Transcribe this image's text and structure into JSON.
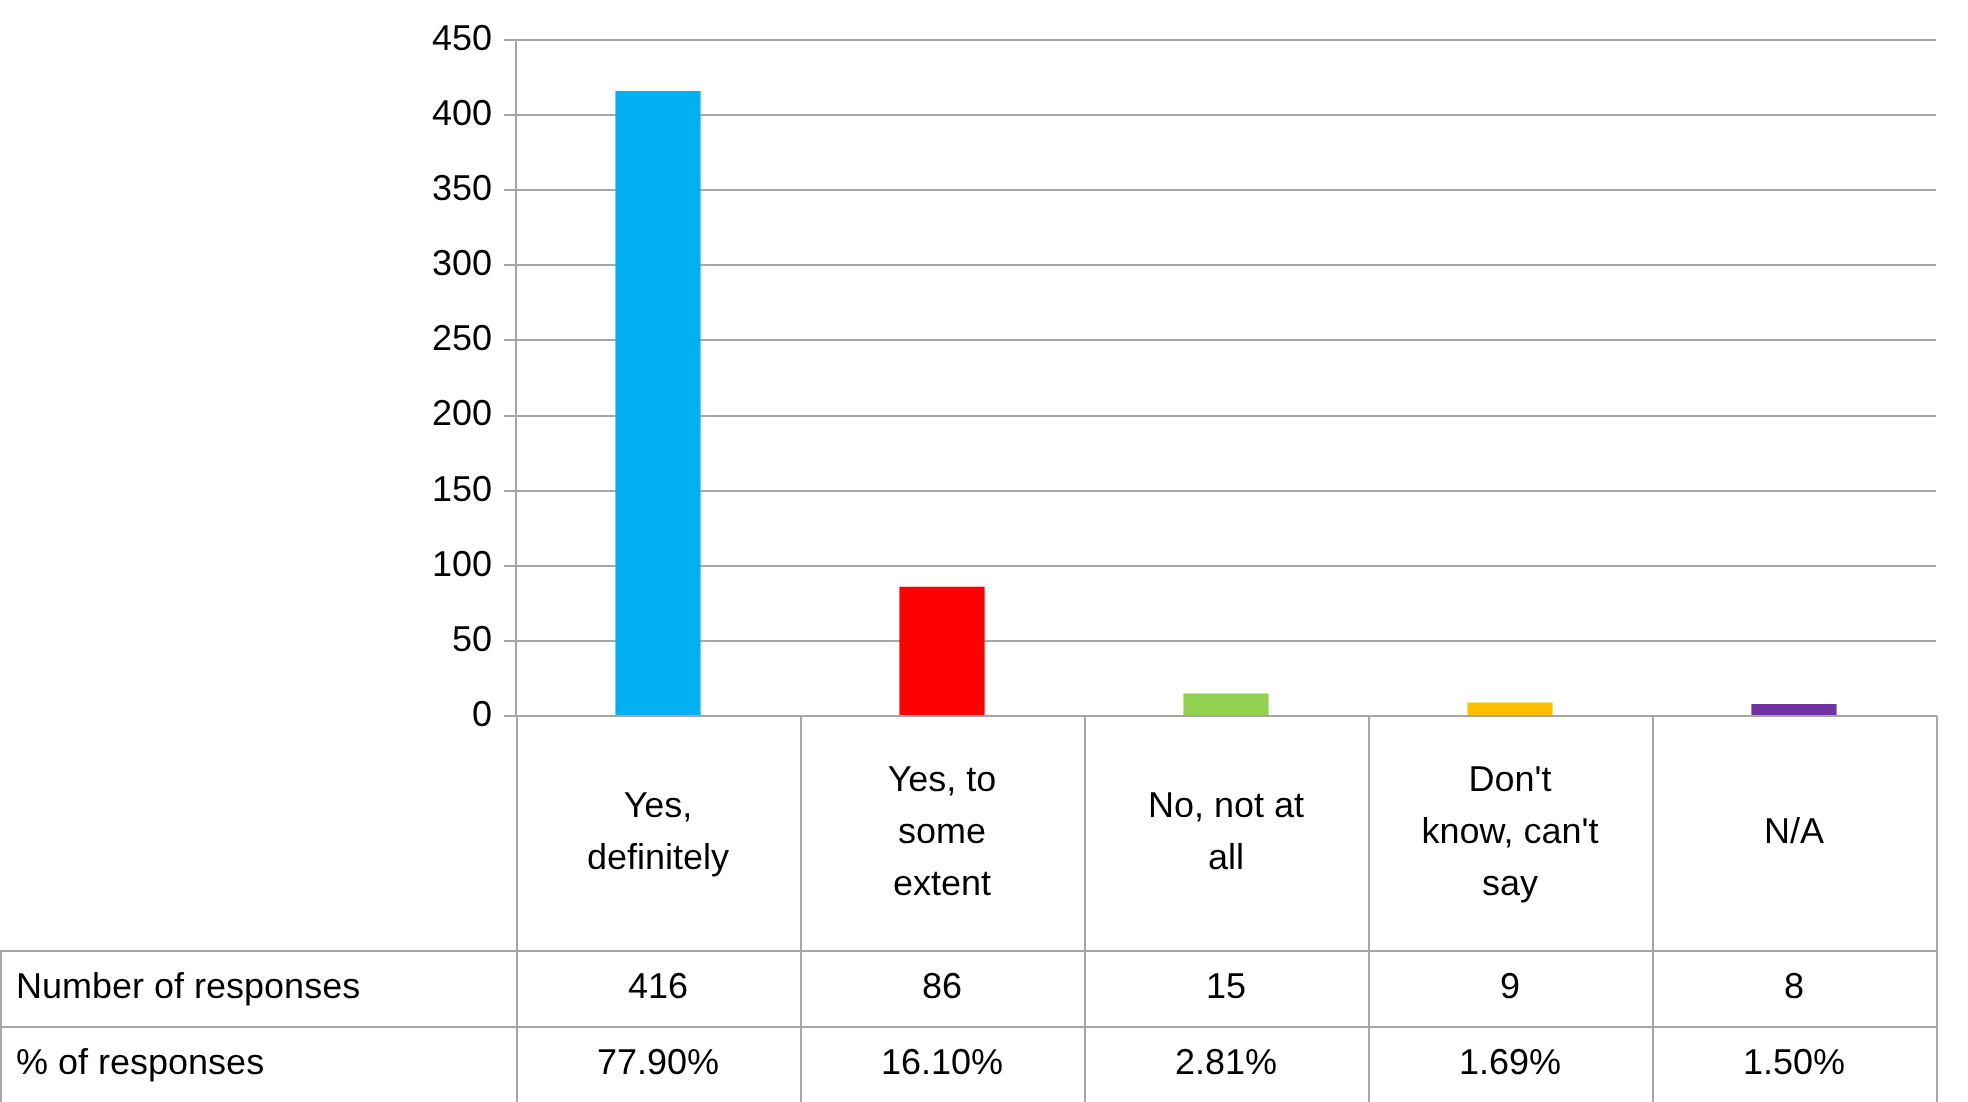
{
  "chart_data": {
    "type": "bar",
    "categories": [
      "Yes, definitely",
      "Yes, to some extent",
      "No, not at all",
      "Don't know, can't say",
      "N/A"
    ],
    "series": [
      {
        "name": "Number of responses",
        "colors": [
          "#00b0f0",
          "#ff0000",
          "#92d050",
          "#ffc000",
          "#7030a0"
        ],
        "values": [
          416,
          86,
          15,
          9,
          8
        ]
      }
    ],
    "data_labels": true,
    "annotations": [
      "% of responses",
      "77.90%",
      "16.10%",
      "2.81%",
      "1.69%",
      "1.50%"
    ],
    "ylim": [
      0,
      450
    ],
    "yticks": [
      0,
      50,
      100,
      150,
      200,
      250,
      300,
      350,
      400,
      450
    ],
    "grid": "y",
    "legend": false
  }
}
